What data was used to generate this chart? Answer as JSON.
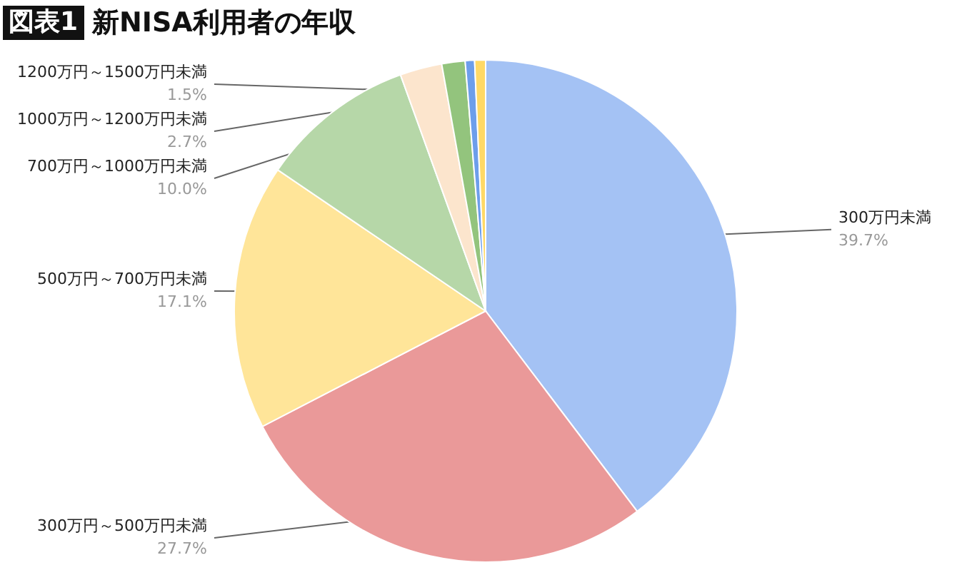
{
  "chart_data": {
    "type": "pie",
    "title": "新NISA利用者の年収",
    "annotations": [
      "図表1"
    ],
    "categories": [
      "300万円未満",
      "300万円～500万円未満",
      "500万円～700万円未満",
      "700万円～1000万円未満",
      "1000万円～1200万円未満",
      "1200万円～1500万円未満",
      null,
      null
    ],
    "values": [
      39.7,
      27.7,
      17.1,
      10.0,
      2.7,
      1.5,
      0.6,
      0.7
    ],
    "value_labels": [
      "39.7%",
      "27.7%",
      "17.1%",
      "10.0%",
      "2.7%",
      "1.5%",
      null,
      null
    ],
    "colors": [
      "#a4c2f4",
      "#ea9999",
      "#ffe599",
      "#b6d7a8",
      "#fce5cd",
      "#93c47d",
      "#6d9eeb",
      "#ffd966"
    ]
  }
}
